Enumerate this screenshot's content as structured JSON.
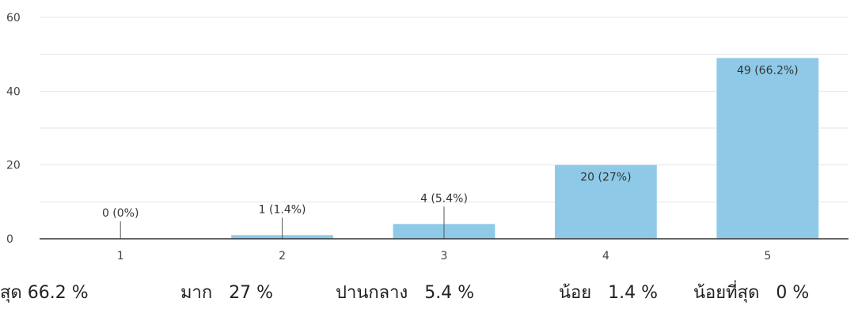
{
  "chart_data": {
    "type": "bar",
    "categories": [
      "1",
      "2",
      "3",
      "4",
      "5"
    ],
    "values": [
      0,
      1,
      4,
      20,
      49
    ],
    "data_labels": [
      "0 (0%)",
      "1 (1.4%)",
      "4 (5.4%)",
      "20 (27%)",
      "49 (66.2%)"
    ],
    "ylim": [
      0,
      60
    ],
    "yticks": [
      "0",
      "20",
      "40",
      "60"
    ],
    "yticks_values": [
      0,
      20,
      40,
      60
    ],
    "grid": true,
    "bar_color": "#8ecae8",
    "grid_color": "#e6e6e6",
    "axis_color": "#333333",
    "title": "",
    "xlabel": "",
    "ylabel": ""
  },
  "summary": {
    "items": [
      {
        "label": "สุด",
        "value": "66.2 %"
      },
      {
        "label": "มาก",
        "value": "27 %"
      },
      {
        "label": "ปานกลาง",
        "value": "5.4 %"
      },
      {
        "label": "น้อย",
        "value": "1.4 %"
      },
      {
        "label": "น้อยที่สุด",
        "value": "0 %"
      }
    ]
  }
}
